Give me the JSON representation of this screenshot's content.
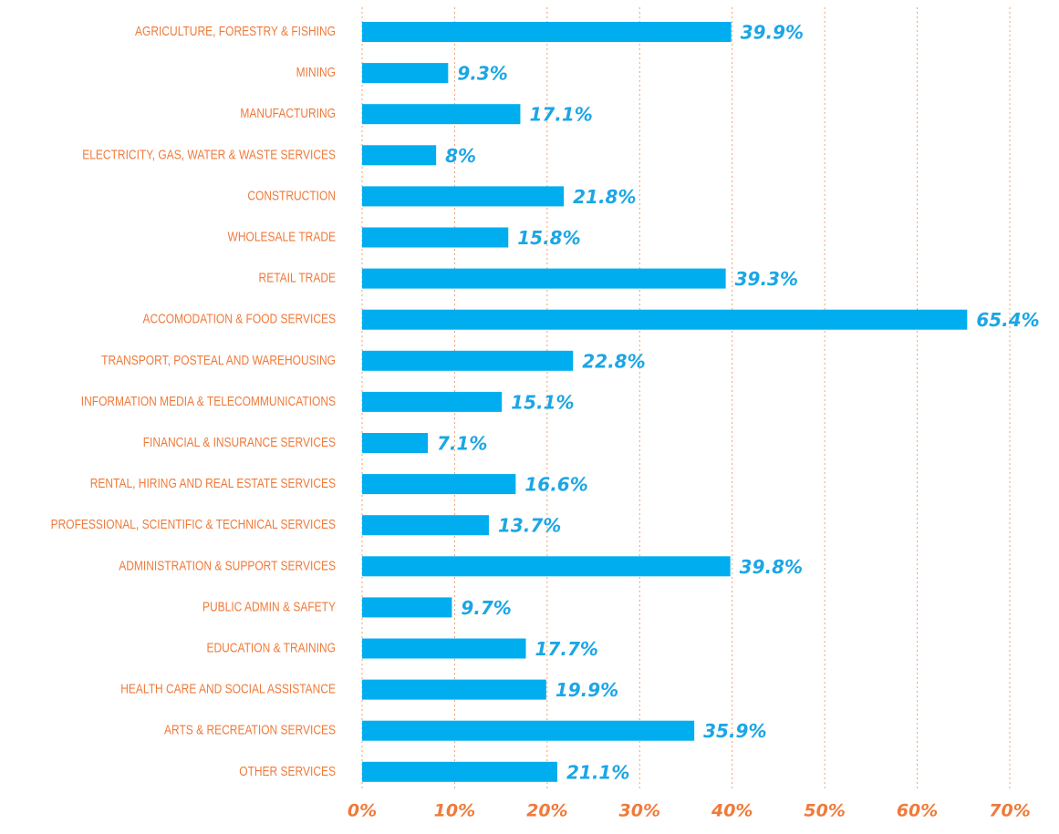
{
  "chart_data": {
    "type": "bar",
    "orientation": "horizontal",
    "categories": [
      "AGRICULTURE, FORESTRY & FISHING",
      "MINING",
      "MANUFACTURING",
      "ELECTRICITY, GAS, WATER & WASTE SERVICES",
      "CONSTRUCTION",
      "WHOLESALE TRADE",
      "RETAIL TRADE",
      "ACCOMODATION & FOOD SERVICES",
      "TRANSPORT, POSTEAL AND WAREHOUSING",
      "INFORMATION MEDIA & TELECOMMUNICATIONS",
      "FINANCIAL & INSURANCE SERVICES",
      "RENTAL, HIRING AND REAL ESTATE SERVICES",
      "PROFESSIONAL, SCIENTIFIC & TECHNICAL SERVICES",
      "ADMINISTRATION & SUPPORT SERVICES",
      "PUBLIC ADMIN & SAFETY",
      "EDUCATION & TRAINING",
      "HEALTH CARE AND SOCIAL ASSISTANCE",
      "ARTS & RECREATION SERVICES",
      "OTHER SERVICES"
    ],
    "values": [
      39.9,
      9.3,
      17.1,
      8,
      21.8,
      15.8,
      39.3,
      65.4,
      22.8,
      15.1,
      7.1,
      16.6,
      13.7,
      39.8,
      9.7,
      17.7,
      19.9,
      35.9,
      21.1
    ],
    "value_labels": [
      "39.9%",
      "9.3%",
      "17.1%",
      "8%",
      "21.8%",
      "15.8%",
      "39.3%",
      "65.4%",
      "22.8%",
      "15.1%",
      "7.1%",
      "16.6%",
      "13.7%",
      "39.8%",
      "9.7%",
      "17.7%",
      "19.9%",
      "35.9%",
      "21.1%"
    ],
    "color": "#00aeef",
    "xlim": [
      0,
      70
    ],
    "xticks": [
      {
        "value": 0,
        "label": "0%"
      },
      {
        "value": 10,
        "label": "10%"
      },
      {
        "value": 20,
        "label": "20%"
      },
      {
        "value": 30,
        "label": "30%"
      },
      {
        "value": 40,
        "label": "40%"
      },
      {
        "value": 50,
        "label": "50%"
      },
      {
        "value": 60,
        "label": "60%"
      },
      {
        "value": 70,
        "label": "70%"
      }
    ],
    "grid": true
  }
}
